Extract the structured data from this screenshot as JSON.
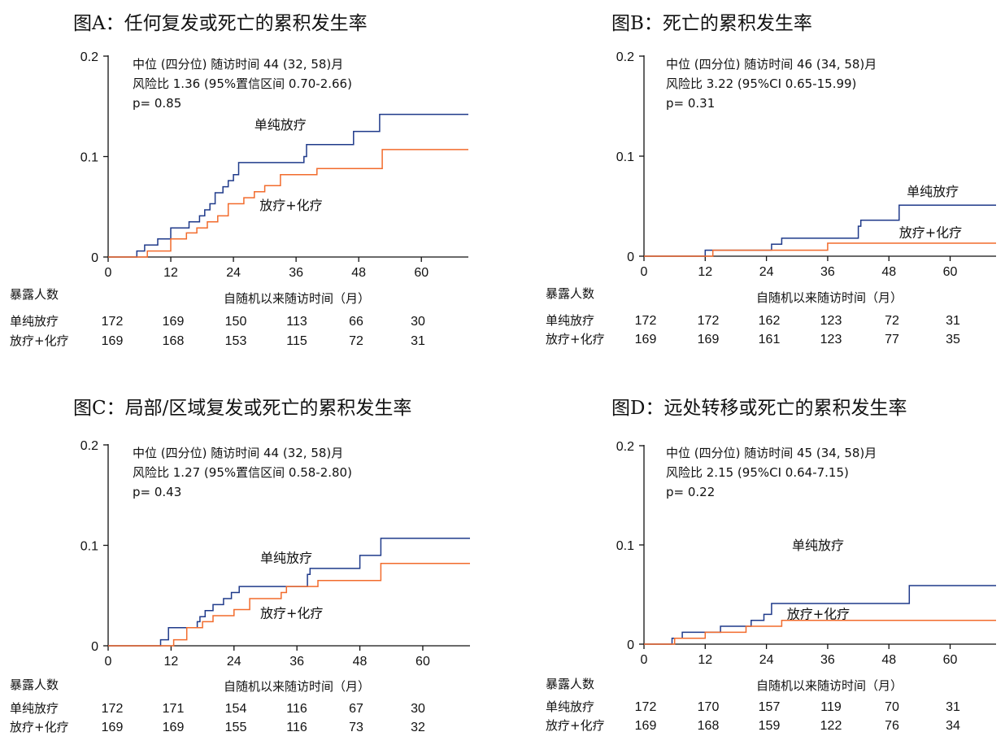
{
  "colors": {
    "rt_alone": "#1f3a8a",
    "rt_chemo": "#f26b2c",
    "axis": "#111111"
  },
  "risk_header": "暴露人数",
  "chart_data": [
    {
      "type": "line",
      "title": "图A：任何复发或死亡的累积发生率",
      "info": [
        "中位 (四分位) 随访时间 44 (32, 58)月",
        "风险比 1.36 (95%置信区间 0.70-2.66)",
        "p= 0.85"
      ],
      "xlabel": "自随机以来随访时间（月）",
      "xlim": [
        0,
        69
      ],
      "ylim": [
        0,
        0.2
      ],
      "xticks": [
        0,
        12,
        24,
        36,
        48,
        60
      ],
      "yticks": [
        0,
        0.1,
        0.2
      ],
      "ytick_labels": [
        "0",
        "0.1",
        "0.2"
      ],
      "series": [
        {
          "name": "单纯放疗",
          "color": "#1f3a8a",
          "label_pos": [
            28,
            0.127
          ],
          "steps": [
            [
              0,
              0
            ],
            [
              5.5,
              0.006
            ],
            [
              7,
              0.012
            ],
            [
              9.5,
              0.018
            ],
            [
              12,
              0.029
            ],
            [
              15.5,
              0.035
            ],
            [
              17.5,
              0.041
            ],
            [
              18.5,
              0.047
            ],
            [
              19.5,
              0.053
            ],
            [
              20.5,
              0.064
            ],
            [
              22,
              0.07
            ],
            [
              23,
              0.076
            ],
            [
              24,
              0.082
            ],
            [
              25,
              0.094
            ],
            [
              37.5,
              0.1
            ],
            [
              38,
              0.112
            ],
            [
              47,
              0.125
            ],
            [
              52,
              0.142
            ],
            [
              69,
              0.142
            ]
          ]
        },
        {
          "name": "放疗+化疗",
          "color": "#f26b2c",
          "label_pos": [
            29,
            0.047
          ],
          "steps": [
            [
              0,
              0
            ],
            [
              7.5,
              0.006
            ],
            [
              12,
              0.018
            ],
            [
              15,
              0.024
            ],
            [
              17,
              0.029
            ],
            [
              19,
              0.035
            ],
            [
              21,
              0.041
            ],
            [
              23,
              0.053
            ],
            [
              26,
              0.059
            ],
            [
              28,
              0.065
            ],
            [
              30,
              0.071
            ],
            [
              33,
              0.082
            ],
            [
              40,
              0.088
            ],
            [
              52.5,
              0.107
            ],
            [
              69,
              0.107
            ]
          ]
        }
      ],
      "risk_rows": [
        {
          "label": "单纯放疗",
          "values": [
            172,
            169,
            150,
            113,
            66,
            30
          ]
        },
        {
          "label": "放疗+化疗",
          "values": [
            169,
            168,
            153,
            115,
            72,
            31
          ]
        }
      ]
    },
    {
      "type": "line",
      "title": "图B：死亡的累积发生率",
      "info": [
        "中位 (四分位) 随访时间 46 (34, 58)月",
        "风险比 3.22 (95%CI 0.65-15.99)",
        "p= 0.31"
      ],
      "xlabel": "自随机以来随访时间（月）",
      "xlim": [
        0,
        69
      ],
      "ylim": [
        0,
        0.2
      ],
      "xticks": [
        0,
        12,
        24,
        36,
        48,
        60
      ],
      "yticks": [
        0,
        0.1,
        0.2
      ],
      "ytick_labels": [
        "0",
        "0.1",
        "0.2"
      ],
      "series": [
        {
          "name": "单纯放疗",
          "color": "#1f3a8a",
          "label_pos": [
            51.5,
            0.06
          ],
          "steps": [
            [
              0,
              0
            ],
            [
              12,
              0.006
            ],
            [
              25,
              0.012
            ],
            [
              27,
              0.018
            ],
            [
              42,
              0.03
            ],
            [
              42.5,
              0.036
            ],
            [
              50,
              0.051
            ],
            [
              69,
              0.051
            ]
          ]
        },
        {
          "name": "放疗+化疗",
          "color": "#f26b2c",
          "label_pos": [
            50,
            0.019
          ],
          "steps": [
            [
              0,
              0
            ],
            [
              13.5,
              0.006
            ],
            [
              36,
              0.013
            ],
            [
              69,
              0.013
            ]
          ]
        }
      ],
      "risk_rows": [
        {
          "label": "单纯放疗",
          "values": [
            172,
            172,
            162,
            123,
            72,
            31
          ]
        },
        {
          "label": "放疗+化疗",
          "values": [
            169,
            169,
            161,
            123,
            77,
            35
          ]
        }
      ]
    },
    {
      "type": "line",
      "title": "图C：局部/区域复发或死亡的累积发生率",
      "info": [
        "中位 (四分位) 随访时间 44 (32, 58)月",
        "风险比 1.27 (95%置信区间 0.58-2.80)",
        "p= 0.43"
      ],
      "xlabel": "自随机以来随访时间（月）",
      "xlim": [
        0,
        69
      ],
      "ylim": [
        0,
        0.2
      ],
      "xticks": [
        0,
        12,
        24,
        36,
        48,
        60
      ],
      "yticks": [
        0,
        0.1,
        0.2
      ],
      "ytick_labels": [
        "0",
        "0.1",
        "0.2"
      ],
      "series": [
        {
          "name": "单纯放疗",
          "color": "#1f3a8a",
          "label_pos": [
            29,
            0.083
          ],
          "steps": [
            [
              0,
              0
            ],
            [
              10,
              0.006
            ],
            [
              11.5,
              0.018
            ],
            [
              17,
              0.024
            ],
            [
              17.5,
              0.029
            ],
            [
              18.5,
              0.035
            ],
            [
              20,
              0.041
            ],
            [
              22,
              0.047
            ],
            [
              23.5,
              0.053
            ],
            [
              25,
              0.059
            ],
            [
              38,
              0.071
            ],
            [
              38.5,
              0.077
            ],
            [
              48,
              0.09
            ],
            [
              52,
              0.107
            ],
            [
              69,
              0.107
            ]
          ]
        },
        {
          "name": "放疗+化疗",
          "color": "#f26b2c",
          "label_pos": [
            29,
            0.028
          ],
          "steps": [
            [
              0,
              0
            ],
            [
              12.5,
              0.006
            ],
            [
              15,
              0.018
            ],
            [
              18,
              0.024
            ],
            [
              20,
              0.03
            ],
            [
              24,
              0.036
            ],
            [
              27,
              0.047
            ],
            [
              33,
              0.053
            ],
            [
              34,
              0.059
            ],
            [
              40,
              0.065
            ],
            [
              52,
              0.082
            ],
            [
              69,
              0.082
            ]
          ]
        }
      ],
      "risk_rows": [
        {
          "label": "单纯放疗",
          "values": [
            172,
            171,
            154,
            116,
            67,
            30
          ]
        },
        {
          "label": "放疗+化疗",
          "values": [
            169,
            169,
            155,
            116,
            73,
            32
          ]
        }
      ]
    },
    {
      "type": "line",
      "title": "图D：远处转移或死亡的累积发生率",
      "info": [
        "中位 (四分位) 随访时间 45 (34, 58)月",
        "风险比 2.15 (95%CI 0.64-7.15)",
        "p= 0.22"
      ],
      "xlabel": "自随机以来随访时间（月）",
      "xlim": [
        0,
        69
      ],
      "ylim": [
        0,
        0.2
      ],
      "xticks": [
        0,
        12,
        24,
        36,
        48,
        60
      ],
      "yticks": [
        0,
        0.1,
        0.2
      ],
      "ytick_labels": [
        "0",
        "0.1",
        "0.2"
      ],
      "series": [
        {
          "name": "单纯放疗",
          "color": "#1f3a8a",
          "label_pos": [
            29,
            0.095
          ],
          "steps": [
            [
              0,
              0
            ],
            [
              5.5,
              0.006
            ],
            [
              7.5,
              0.012
            ],
            [
              15,
              0.018
            ],
            [
              21,
              0.024
            ],
            [
              23.5,
              0.03
            ],
            [
              25,
              0.041
            ],
            [
              52,
              0.059
            ],
            [
              69,
              0.059
            ]
          ]
        },
        {
          "name": "放疗+化疗",
          "color": "#f26b2c",
          "label_pos": [
            28,
            0.026
          ],
          "steps": [
            [
              0,
              0
            ],
            [
              6,
              0.006
            ],
            [
              12,
              0.012
            ],
            [
              20,
              0.018
            ],
            [
              27,
              0.024
            ],
            [
              69,
              0.024
            ]
          ]
        }
      ],
      "risk_rows": [
        {
          "label": "单纯放疗",
          "values": [
            172,
            170,
            157,
            119,
            70,
            31
          ]
        },
        {
          "label": "放疗+化疗",
          "values": [
            169,
            168,
            159,
            122,
            76,
            34
          ]
        }
      ]
    }
  ]
}
